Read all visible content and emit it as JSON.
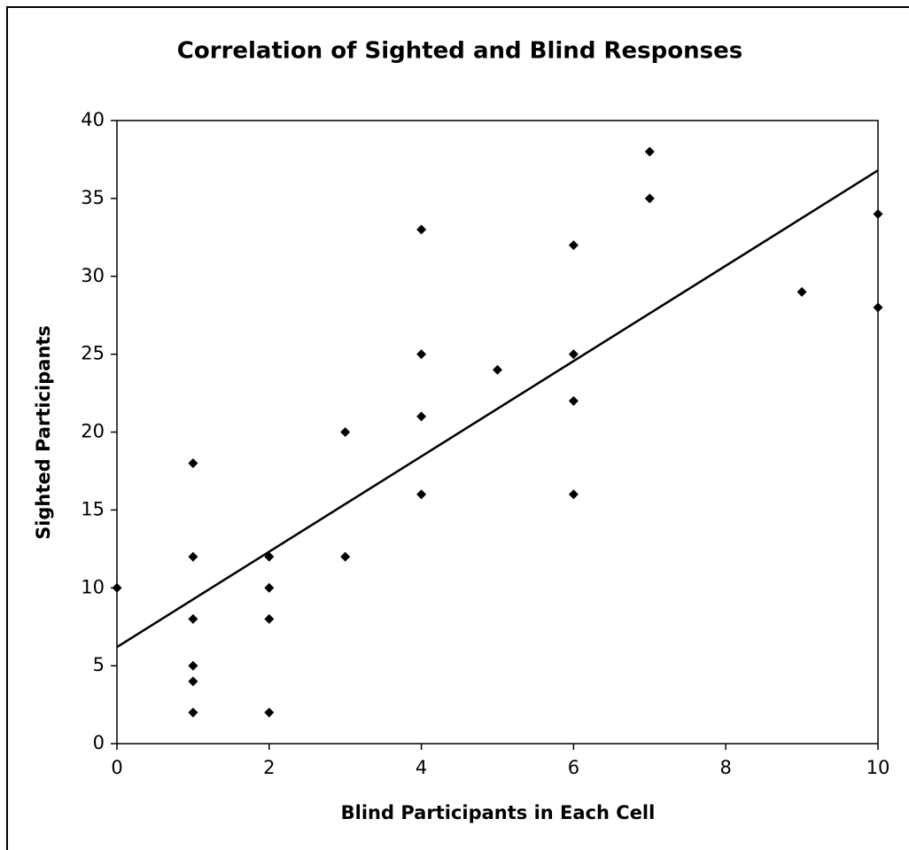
{
  "chart_data": {
    "type": "scatter",
    "title": "Correlation of Sighted and Blind Responses",
    "xlabel": "Blind Participants in Each Cell",
    "ylabel": "Sighted Participants",
    "series": [
      {
        "color": "#000000",
        "x": [
          0,
          1,
          1,
          1,
          1,
          1,
          1,
          2,
          2,
          2,
          2,
          3,
          3,
          4,
          4,
          4,
          4,
          5,
          6,
          6,
          6,
          6,
          7,
          7,
          9,
          10,
          10
        ],
        "values": [
          10,
          18,
          12,
          8,
          5,
          4,
          2,
          12,
          10,
          8,
          2,
          20,
          12,
          33,
          25,
          21,
          16,
          24,
          32,
          25,
          22,
          16,
          38,
          35,
          29,
          34,
          28
        ]
      }
    ],
    "trendline": {
      "color": "#000000",
      "x": [
        0,
        10
      ],
      "values": [
        6.2,
        36.8
      ]
    },
    "xlim": [
      0,
      10
    ],
    "xticks": [
      0,
      2,
      4,
      6,
      8,
      10
    ],
    "ylim": [
      0,
      40
    ],
    "yticks": [
      0,
      5,
      10,
      15,
      20,
      25,
      30,
      35,
      40
    ],
    "grid": false
  }
}
